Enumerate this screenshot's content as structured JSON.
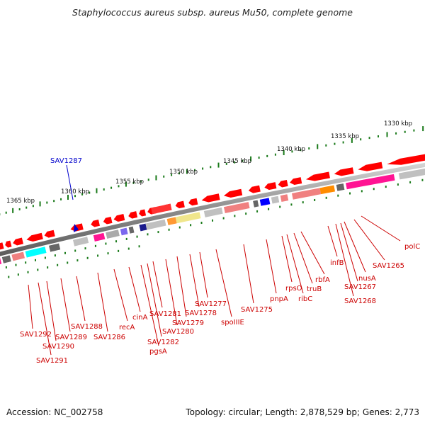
{
  "title": "Staphylococcus aureus subsp. aureus Mu50, complete genome",
  "footer": {
    "accession": "Accession: NC_002758",
    "topology": "Topology: circular; Length: 2,878,529 bp; Genes: 2,773"
  },
  "selected_gene": "SAV1287",
  "colors": {
    "gene_label": "#cc0000",
    "selected": "#0000cc",
    "strand": "#ff0000",
    "tick": "#1a7a1a"
  },
  "kbp_labels": [
    "1330 kbp",
    "1335 kbp",
    "1340 kbp",
    "1345 kbp",
    "1350 kbp",
    "1355 kbp",
    "1360 kbp",
    "1365 kbp"
  ],
  "gene_labels": [
    "polC",
    "SAV1265",
    "nusA",
    "SAV1267",
    "SAV1268",
    "infB",
    "rbfA",
    "truB",
    "ribC",
    "rpsO",
    "pnpA",
    "SAV1275",
    "spoIIIE",
    "SAV1277",
    "SAV1278",
    "SAV1279",
    "SAV1280",
    "SAV1281",
    "SAV1282",
    "pgsA",
    "cinA",
    "recA",
    "SAV1286",
    "SAV1288",
    "SAV1289",
    "SAV1290",
    "SAV1291",
    "SAV1292"
  ]
}
